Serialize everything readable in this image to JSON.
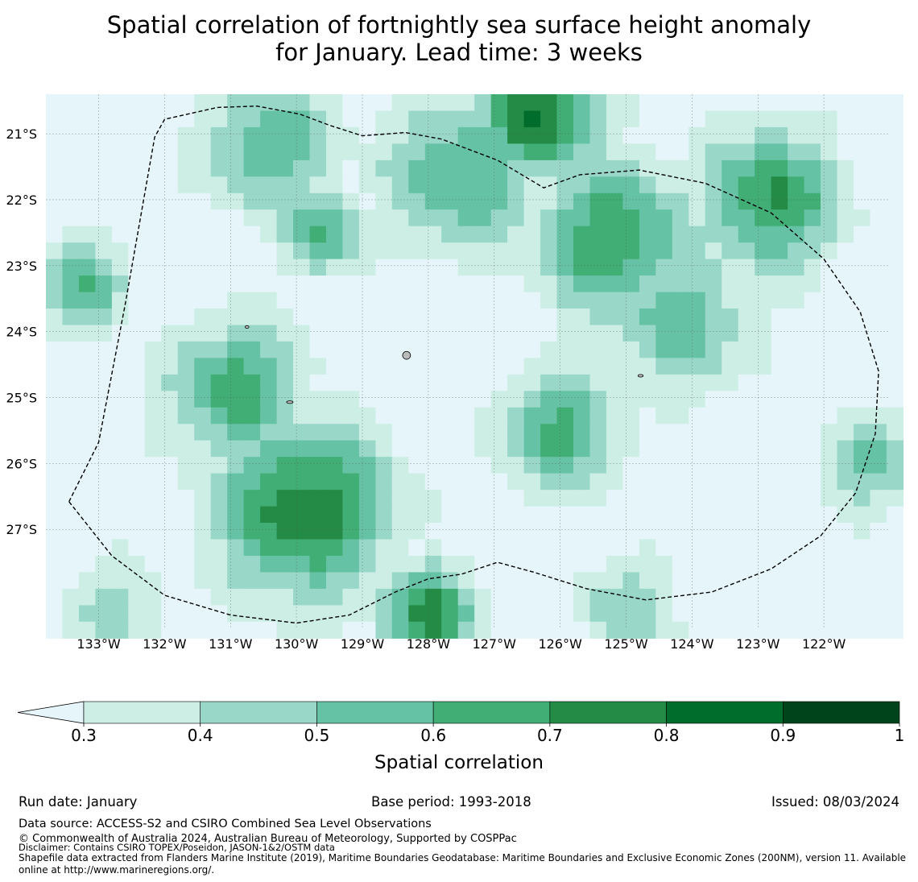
{
  "title_line1": "Spatial correlation of fortnightly sea surface height anomaly",
  "title_line2": "for January. Lead time: 3 weeks",
  "chart_data": {
    "type": "heatmap",
    "variable": "Spatial correlation",
    "lon_range": [
      -133.8,
      -121.0
    ],
    "lat_range": [
      -28.5,
      -20.4
    ],
    "lon_ticks": [
      {
        "v": -133,
        "label": "133°W"
      },
      {
        "v": -132,
        "label": "132°W"
      },
      {
        "v": -131,
        "label": "131°W"
      },
      {
        "v": -130,
        "label": "130°W"
      },
      {
        "v": -129,
        "label": "129°W"
      },
      {
        "v": -128,
        "label": "128°W"
      },
      {
        "v": -127,
        "label": "127°W"
      },
      {
        "v": -126,
        "label": "126°W"
      },
      {
        "v": -125,
        "label": "125°W"
      },
      {
        "v": -124,
        "label": "124°W"
      },
      {
        "v": -123,
        "label": "123°W"
      },
      {
        "v": -122,
        "label": "122°W"
      }
    ],
    "lat_ticks": [
      {
        "v": -21,
        "label": "21°S"
      },
      {
        "v": -22,
        "label": "22°S"
      },
      {
        "v": -23,
        "label": "23°S"
      },
      {
        "v": -24,
        "label": "24°S"
      },
      {
        "v": -25,
        "label": "25°S"
      },
      {
        "v": -26,
        "label": "26°S"
      },
      {
        "v": -27,
        "label": "27°S"
      }
    ],
    "colorbar": {
      "label": "Spatial correlation",
      "bounds": [
        0.3,
        0.4,
        0.5,
        0.6,
        0.7,
        0.8,
        0.9,
        1.0
      ],
      "tick_labels": [
        "0.3",
        "0.4",
        "0.5",
        "0.6",
        "0.7",
        "0.8",
        "0.9",
        "1"
      ],
      "colors": [
        "#cceee4",
        "#99d8c9",
        "#66c2a4",
        "#41ae76",
        "#238b45",
        "#006d2c",
        "#00441b"
      ],
      "under_color": "#e5f5f9",
      "extend": "min"
    },
    "hotspots": [
      {
        "lon": -129.9,
        "lat": -26.7,
        "value": 0.78,
        "r": 1.4
      },
      {
        "lon": -130.9,
        "lat": -24.9,
        "value": 0.66,
        "r": 1.1
      },
      {
        "lon": -125.2,
        "lat": -22.6,
        "value": 0.68,
        "r": 1.3
      },
      {
        "lon": -122.8,
        "lat": -22.0,
        "value": 0.72,
        "r": 1.1
      },
      {
        "lon": -126.3,
        "lat": -20.7,
        "value": 0.82,
        "r": 1.0
      },
      {
        "lon": -128.0,
        "lat": -28.3,
        "value": 0.74,
        "r": 0.8
      },
      {
        "lon": -126.0,
        "lat": -25.5,
        "value": 0.63,
        "r": 1.0
      },
      {
        "lon": -133.2,
        "lat": -23.3,
        "value": 0.62,
        "r": 0.7
      },
      {
        "lon": -127.5,
        "lat": -21.6,
        "value": 0.6,
        "r": 1.3
      },
      {
        "lon": -130.4,
        "lat": -21.2,
        "value": 0.58,
        "r": 1.1
      },
      {
        "lon": -129.6,
        "lat": -22.5,
        "value": 0.6,
        "r": 0.7
      },
      {
        "lon": -124.2,
        "lat": -23.8,
        "value": 0.56,
        "r": 1.2
      },
      {
        "lon": -121.3,
        "lat": -26.0,
        "value": 0.52,
        "r": 0.8
      },
      {
        "lon": -132.8,
        "lat": -28.2,
        "value": 0.45,
        "r": 0.8
      },
      {
        "lon": -125.0,
        "lat": -28.2,
        "value": 0.46,
        "r": 0.9
      }
    ],
    "eez_boundary": [
      [
        -133.45,
        -26.58
      ],
      [
        -133.0,
        -25.68
      ],
      [
        -132.6,
        -23.6
      ],
      [
        -132.15,
        -21.05
      ],
      [
        -132.0,
        -20.78
      ],
      [
        -131.2,
        -20.6
      ],
      [
        -130.6,
        -20.58
      ],
      [
        -129.95,
        -20.7
      ],
      [
        -129.5,
        -20.87
      ],
      [
        -129.0,
        -21.03
      ],
      [
        -128.35,
        -20.98
      ],
      [
        -127.8,
        -21.08
      ],
      [
        -126.95,
        -21.4
      ],
      [
        -126.25,
        -21.82
      ],
      [
        -125.7,
        -21.62
      ],
      [
        -124.8,
        -21.55
      ],
      [
        -123.8,
        -21.75
      ],
      [
        -122.8,
        -22.2
      ],
      [
        -122.0,
        -22.9
      ],
      [
        -121.45,
        -23.7
      ],
      [
        -121.17,
        -24.6
      ],
      [
        -121.22,
        -25.55
      ],
      [
        -121.52,
        -26.45
      ],
      [
        -122.05,
        -27.1
      ],
      [
        -122.8,
        -27.6
      ],
      [
        -123.7,
        -27.95
      ],
      [
        -124.7,
        -28.07
      ],
      [
        -125.6,
        -27.9
      ],
      [
        -126.4,
        -27.65
      ],
      [
        -126.95,
        -27.5
      ],
      [
        -127.5,
        -27.68
      ],
      [
        -128.0,
        -27.75
      ],
      [
        -128.5,
        -27.95
      ],
      [
        -129.2,
        -28.3
      ],
      [
        -130.0,
        -28.42
      ],
      [
        -131.0,
        -28.3
      ],
      [
        -132.0,
        -28.0
      ],
      [
        -132.8,
        -27.4
      ],
      [
        -133.45,
        -26.58
      ]
    ],
    "islands": [
      {
        "lon": -128.33,
        "lat": -24.36,
        "w": 0.06,
        "h": 0.06
      },
      {
        "lon": -130.1,
        "lat": -25.07,
        "w": 0.05,
        "h": 0.02
      },
      {
        "lon": -124.78,
        "lat": -24.67,
        "w": 0.04,
        "h": 0.02
      },
      {
        "lon": -130.75,
        "lat": -23.93,
        "w": 0.03,
        "h": 0.02
      }
    ]
  },
  "footer": {
    "run_date": "Run date: January",
    "base_period": "Base period: 1993-2018",
    "issued": "Issued: 08/03/2024",
    "data_source": "Data source: ACCESS-S2 and CSIRO Combined Sea Level Observations",
    "copyright": "© Commonwealth of Australia 2024, Australian Bureau of Meteorology, Supported by COSPPac",
    "disclaimer": "Disclaimer: Contains CSIRO TOPEX/Poseidon, JASON-1&2/OSTM data",
    "shapefile": "Shapefile data extracted from Flanders Marine Institute (2019), Maritime Boundaries Geodatabase: Maritime Boundaries and Exclusive Economic Zones (200NM), version 11. Available online at http://www.marineregions.org/."
  }
}
